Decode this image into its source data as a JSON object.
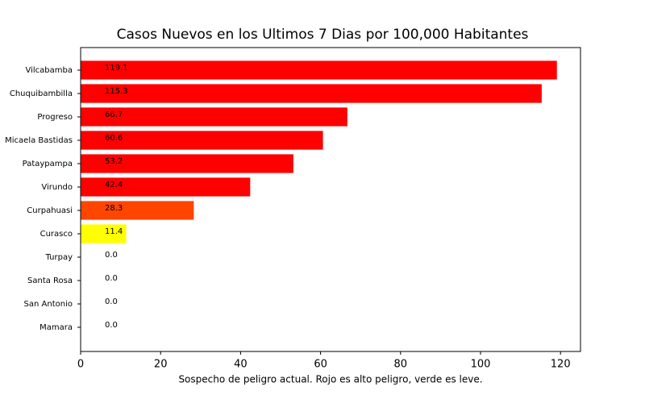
{
  "chart_data": {
    "type": "barh",
    "title": "Casos Nuevos en los Ultimos 7 Dias por 100,000 Habitantes",
    "x_label": "Sospecho de peligro actual. Rojo es alto peligro, verde es leve.",
    "categories": [
      "Vilcabamba",
      "Chuquibambilla",
      "Progreso",
      "Micaela Bastidas",
      "Pataypampa",
      "Virundo",
      "Curpahuasi",
      "Curasco",
      "Turpay",
      "Santa Rosa",
      "San Antonio",
      "Mamara"
    ],
    "values": [
      119.1,
      115.3,
      66.7,
      60.6,
      53.2,
      42.4,
      28.3,
      11.4,
      0,
      0,
      0,
      0
    ],
    "value_labels": [
      "119.1",
      "115.3",
      "66.7",
      "60.6",
      "53.2",
      "42.4",
      "28.3",
      "11.4",
      "0.0",
      "0.0",
      "0.0",
      "0.0"
    ],
    "colors": [
      "#ff0000",
      "#ff0000",
      "#ff0000",
      "#ff0000",
      "#ff0000",
      "#ff0000",
      "#ff4500",
      "#ffff00",
      "#008000",
      "#008000",
      "#008000",
      "#008000"
    ],
    "xlim": [
      0,
      125
    ],
    "xticks": [
      0,
      20,
      40,
      60,
      80,
      100,
      120
    ],
    "grid": false
  }
}
